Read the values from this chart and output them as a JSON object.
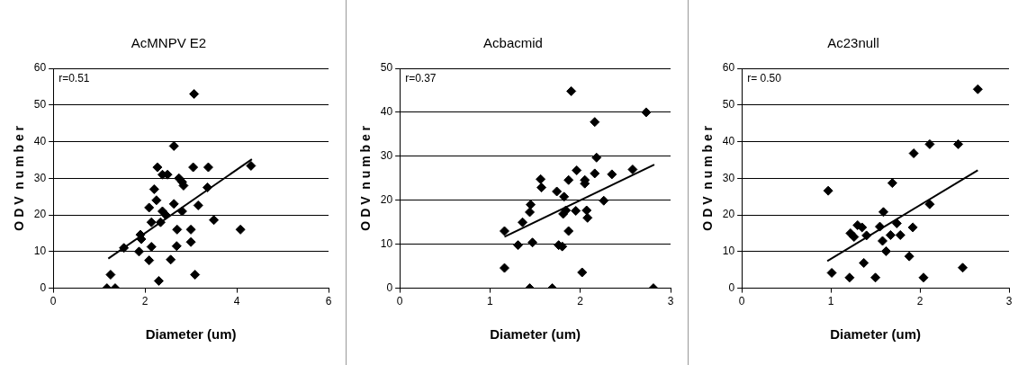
{
  "chart_data": [
    {
      "type": "scatter",
      "title": "AcMNPV E2",
      "xlabel": "Diameter (um)",
      "ylabel": "O D V  n u m b e r",
      "annotations": [
        "r=0.51"
      ],
      "xlim": [
        0,
        6
      ],
      "xticks": [
        0,
        2,
        4,
        6
      ],
      "ylim": [
        0,
        60
      ],
      "yticks": [
        0,
        10,
        20,
        30,
        40,
        50,
        60
      ],
      "grid": "y",
      "legend": false,
      "marker": "diamond",
      "series": [
        {
          "type": "scatter",
          "color": "#000000",
          "x": [
            3.07,
            2.63,
            2.27,
            2.38,
            2.49,
            3.05,
            3.38,
            4.31,
            2.74,
            2.81,
            2.84,
            3.36,
            2.2,
            2.25,
            3.16,
            2.09,
            2.63,
            2.38,
            2.45,
            2.34,
            2.81,
            2.14,
            3.5,
            2.7,
            3.0,
            4.08,
            1.9,
            1.92,
            2.14,
            1.54,
            1.87,
            2.09,
            2.56,
            2.69,
            3.0,
            2.3,
            3.09,
            1.25,
            1.17,
            1.35
          ],
          "values": [
            53,
            38.8,
            33,
            31,
            31,
            33,
            33,
            33.4,
            30,
            29,
            28,
            27.5,
            27,
            24,
            22.6,
            22,
            23,
            21,
            20,
            18,
            21,
            18,
            18.6,
            16,
            16,
            16,
            14.6,
            13.4,
            11.3,
            11,
            10,
            7.6,
            7.8,
            11.5,
            12.6,
            2,
            3.7,
            3.7,
            0,
            0
          ]
        },
        {
          "type": "line",
          "marker": "none",
          "color": "#000000",
          "x": [
            1.2,
            4.33
          ],
          "values": [
            8.1,
            35.2
          ]
        }
      ]
    },
    {
      "type": "scatter",
      "title": "Acbacmid",
      "xlabel": "Diameter (um)",
      "ylabel": "O D V  n u m b e r",
      "annotations": [
        "r=0.37"
      ],
      "xlim": [
        0,
        3
      ],
      "xticks": [
        0,
        1,
        2,
        3
      ],
      "ylim": [
        0,
        50
      ],
      "yticks": [
        0,
        10,
        20,
        30,
        40,
        50
      ],
      "grid": "y",
      "legend": false,
      "marker": "diamond",
      "series": [
        {
          "type": "scatter",
          "color": "#000000",
          "x": [
            1.9,
            2.73,
            2.16,
            2.18,
            1.96,
            2.16,
            2.35,
            2.58,
            2.05,
            2.05,
            1.87,
            1.56,
            1.57,
            1.74,
            1.82,
            2.26,
            1.45,
            1.44,
            1.84,
            1.81,
            1.95,
            2.07,
            2.08,
            1.36,
            1.16,
            1.87,
            1.31,
            1.47,
            1.76,
            1.8,
            1.16,
            2.02,
            1.44,
            1.69,
            2.81
          ],
          "values": [
            44.8,
            40,
            37.8,
            29.7,
            26.8,
            26.1,
            25.9,
            27,
            24.6,
            23.8,
            24.6,
            24.8,
            22.9,
            22,
            20.8,
            19.9,
            19,
            17.3,
            17.7,
            16.9,
            17.6,
            17.7,
            16,
            15,
            13,
            13,
            9.8,
            10.4,
            9.8,
            9.5,
            4.6,
            3.6,
            0,
            0,
            0
          ]
        },
        {
          "type": "line",
          "marker": "none",
          "color": "#000000",
          "x": [
            1.16,
            2.82
          ],
          "values": [
            11.7,
            28.1
          ]
        }
      ]
    },
    {
      "type": "scatter",
      "title": "Ac23null",
      "xlabel": "Diameter (um)",
      "ylabel": "O D V  n u m b e r",
      "annotations": [
        "r= 0.50"
      ],
      "xlim": [
        0,
        3
      ],
      "xticks": [
        0,
        1,
        2,
        3
      ],
      "ylim": [
        0,
        60
      ],
      "yticks": [
        0,
        10,
        20,
        30,
        40,
        50,
        60
      ],
      "grid": "y",
      "legend": false,
      "marker": "diamond",
      "series": [
        {
          "type": "scatter",
          "color": "#000000",
          "x": [
            2.65,
            2.11,
            2.43,
            1.93,
            0.97,
            1.69,
            1.59,
            2.11,
            1.74,
            1.92,
            1.3,
            1.35,
            1.22,
            1.26,
            1.4,
            1.55,
            1.58,
            1.67,
            1.78,
            1.62,
            1.88,
            1.37,
            1.01,
            1.21,
            1.5,
            2.04,
            2.48
          ],
          "values": [
            54.3,
            39.3,
            39.3,
            36.8,
            26.6,
            28.7,
            20.8,
            22.9,
            17.7,
            16.6,
            17.2,
            16.6,
            15,
            14,
            14.4,
            16.8,
            12.9,
            14.5,
            14.5,
            10.1,
            8.7,
            6.9,
            4.2,
            2.9,
            2.9,
            2.9,
            5.6
          ]
        },
        {
          "type": "line",
          "marker": "none",
          "color": "#000000",
          "x": [
            0.96,
            2.65
          ],
          "values": [
            7.4,
            32.2
          ]
        }
      ]
    }
  ]
}
